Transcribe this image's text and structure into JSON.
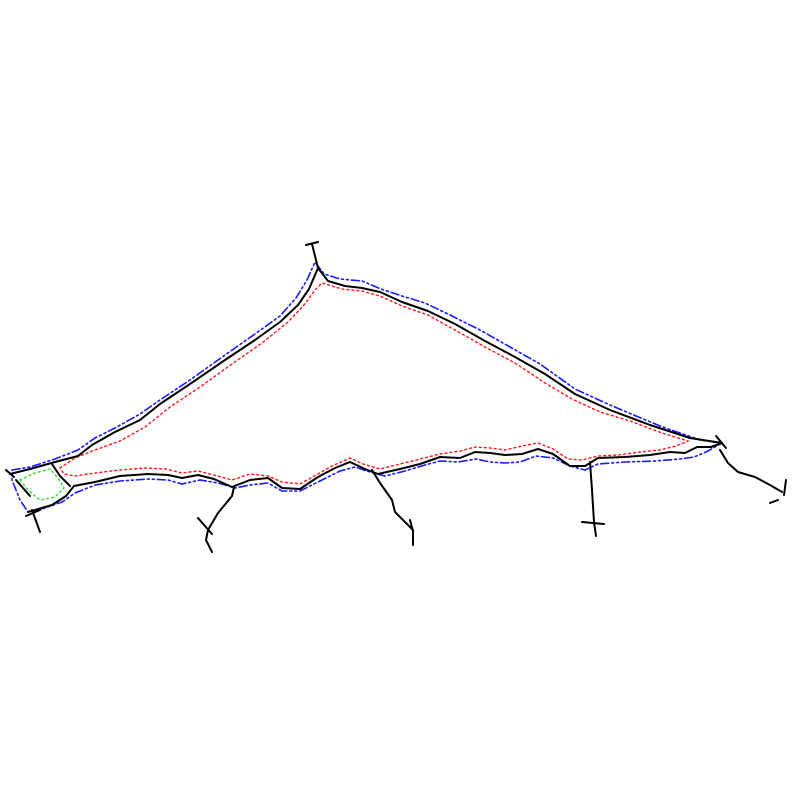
{
  "diagram": {
    "background": "#ffffff",
    "colors": {
      "main_outline": "#000000",
      "outer_offset": "#1a1aff",
      "inner_offset": "#ff1a1a",
      "end_region": "#33dd33"
    },
    "line_styles": {
      "main_outline": "solid",
      "outer_offset": "dash-dot-dot",
      "inner_offset": "dotted",
      "end_region": "dotted"
    },
    "features": [
      {
        "name": "main-outline",
        "kind": "closed-outline"
      },
      {
        "name": "outer-offset-outline",
        "kind": "offset"
      },
      {
        "name": "inner-offset-outline",
        "kind": "offset"
      },
      {
        "name": "left-end-region",
        "kind": "region"
      },
      {
        "name": "branch-1",
        "kind": "branch"
      },
      {
        "name": "branch-2",
        "kind": "branch"
      },
      {
        "name": "branch-3",
        "kind": "branch"
      },
      {
        "name": "branch-4",
        "kind": "branch"
      },
      {
        "name": "branch-5",
        "kind": "branch"
      }
    ]
  }
}
